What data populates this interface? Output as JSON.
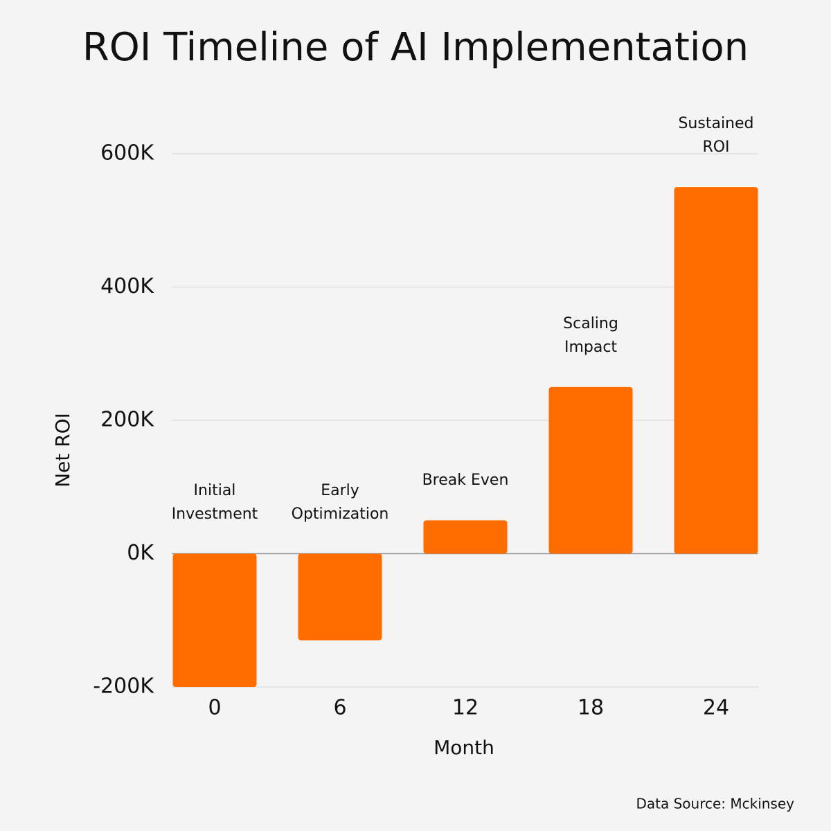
{
  "chart_data": {
    "type": "bar",
    "title": "ROI Timeline of AI Implementation",
    "x_label": "Month",
    "y_label": "Net ROI",
    "source": "Data Source: Mckinsey",
    "categories": [
      "0",
      "6",
      "12",
      "18",
      "24"
    ],
    "values": [
      -200000,
      -130000,
      50000,
      250000,
      550000
    ],
    "annotations": [
      "Initial\nInvestment",
      "Early\nOptimization",
      "Break Even",
      "Scaling\nImpact",
      "Sustained\nROI"
    ],
    "color": "#ff6d00",
    "ylim": [
      -200000,
      600000
    ],
    "yticks": [
      {
        "value": -200000,
        "label": "-200K"
      },
      {
        "value": 0,
        "label": "0K"
      },
      {
        "value": 200000,
        "label": "200K"
      },
      {
        "value": 400000,
        "label": "400K"
      },
      {
        "value": 600000,
        "label": "600K"
      }
    ],
    "grid": true
  }
}
